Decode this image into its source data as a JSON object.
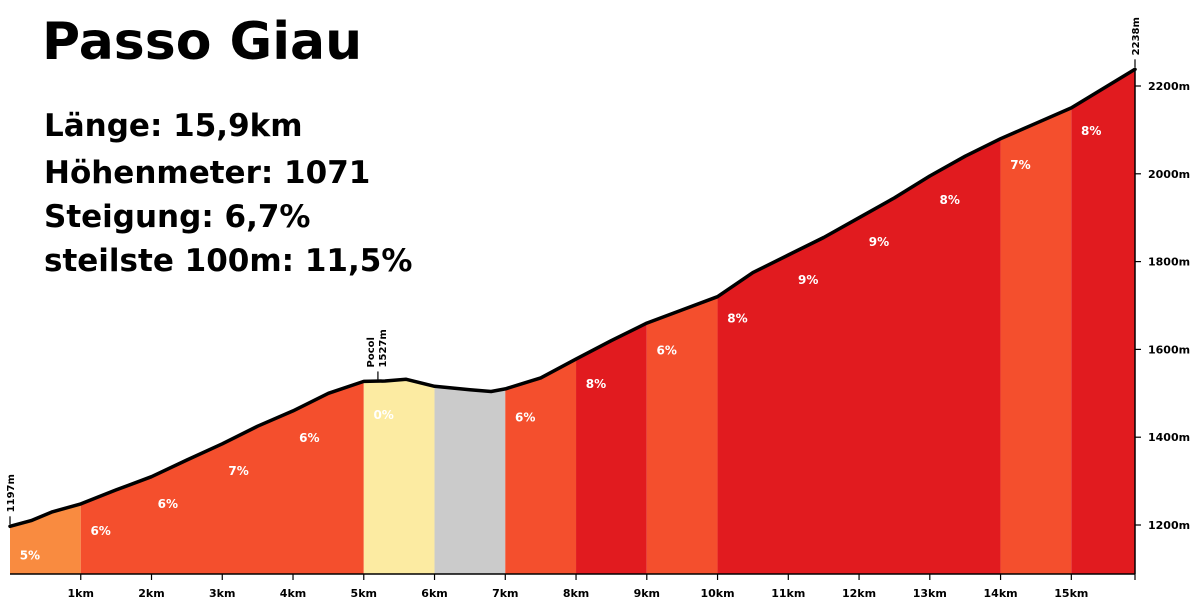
{
  "chart_data": {
    "type": "area",
    "title": "Passo Giau",
    "stats": {
      "laenge": "Länge: 15,9km",
      "hoehenmeter": "Höhenmeter: 1071",
      "steigung": "Steigung: 6,7%",
      "steilste": "steilste 100m: 11,5%"
    },
    "xunit": "km",
    "yunit": "m",
    "xlim": [
      0,
      15.9
    ],
    "ylim": [
      1100,
      2260
    ],
    "x_ticks": [
      1,
      2,
      3,
      4,
      5,
      6,
      7,
      8,
      9,
      10,
      11,
      12,
      13,
      14,
      15
    ],
    "x_tick_labels": [
      "1km",
      "2km",
      "3km",
      "4km",
      "5km",
      "6km",
      "7km",
      "8km",
      "9km",
      "10km",
      "11km",
      "12km",
      "13km",
      "14km",
      "15km"
    ],
    "y_ticks": [
      1200,
      1400,
      1600,
      1800,
      2000,
      2200
    ],
    "y_tick_labels": [
      "1200m",
      "1400m",
      "1600m",
      "1800m",
      "2000m",
      "2200m"
    ],
    "profile": [
      [
        0,
        1197
      ],
      [
        0.3,
        1210
      ],
      [
        0.6,
        1230
      ],
      [
        1,
        1248
      ],
      [
        1.5,
        1280
      ],
      [
        2,
        1310
      ],
      [
        2.5,
        1348
      ],
      [
        3,
        1385
      ],
      [
        3.5,
        1425
      ],
      [
        4,
        1460
      ],
      [
        4.5,
        1500
      ],
      [
        5,
        1527
      ],
      [
        5.3,
        1528
      ],
      [
        5.6,
        1532
      ],
      [
        6,
        1516
      ],
      [
        6.5,
        1508
      ],
      [
        6.8,
        1504
      ],
      [
        7,
        1510
      ],
      [
        7.5,
        1535
      ],
      [
        8,
        1578
      ],
      [
        8.5,
        1620
      ],
      [
        9,
        1660
      ],
      [
        9.5,
        1690
      ],
      [
        10,
        1720
      ],
      [
        10.5,
        1775
      ],
      [
        11,
        1815
      ],
      [
        11.5,
        1855
      ],
      [
        12,
        1900
      ],
      [
        12.5,
        1945
      ],
      [
        13,
        1995
      ],
      [
        13.5,
        2040
      ],
      [
        14,
        2080
      ],
      [
        14.5,
        2115
      ],
      [
        15,
        2150
      ],
      [
        15.9,
        2238
      ]
    ],
    "segments": [
      {
        "from": 0,
        "to": 1,
        "label": "5%",
        "color": "#f98b40",
        "text_color": "#ffffff"
      },
      {
        "from": 1,
        "to": 5,
        "label": "6%",
        "color": "#f44f2d",
        "text_color": "#ffffff"
      },
      {
        "from": 5,
        "to": 6,
        "label": "0%",
        "color": "#fceba2",
        "text_color": "#ffffff"
      },
      {
        "from": 6,
        "to": 7,
        "label": "",
        "color": "#cbcbcb",
        "text_color": "#ffffff"
      },
      {
        "from": 7,
        "to": 8,
        "label": "6%",
        "color": "#f44f2d",
        "text_color": "#ffffff"
      },
      {
        "from": 8,
        "to": 9,
        "label": "8%",
        "color": "#e11b1f",
        "text_color": "#ffffff"
      },
      {
        "from": 9,
        "to": 10,
        "label": "6%",
        "color": "#f44f2d",
        "text_color": "#ffffff"
      },
      {
        "from": 10,
        "to": 14,
        "label": "8%",
        "color": "#e11b1f",
        "text_color": "#ffffff"
      },
      {
        "from": 14,
        "to": 15,
        "label": "7%",
        "color": "#f44f2d",
        "text_color": "#ffffff"
      },
      {
        "from": 15,
        "to": 15.9,
        "label": "8%",
        "color": "#e11b1f",
        "text_color": "#ffffff"
      }
    ],
    "grade_labels": [
      {
        "x": 0.25,
        "label": "5%"
      },
      {
        "x": 1.25,
        "label": "6%"
      },
      {
        "x": 2.2,
        "label": "6%"
      },
      {
        "x": 3.2,
        "label": "7%"
      },
      {
        "x": 4.2,
        "label": "6%"
      },
      {
        "x": 5.25,
        "label": "0%"
      },
      {
        "x": 7.25,
        "label": "6%"
      },
      {
        "x": 8.25,
        "label": "8%"
      },
      {
        "x": 9.25,
        "label": "6%"
      },
      {
        "x": 10.25,
        "label": "8%"
      },
      {
        "x": 11.25,
        "label": "9%"
      },
      {
        "x": 12.25,
        "label": "9%"
      },
      {
        "x": 13.25,
        "label": "8%"
      },
      {
        "x": 14.25,
        "label": "7%"
      },
      {
        "x": 15.25,
        "label": "8%"
      }
    ],
    "annotations": [
      {
        "x": 0,
        "alt": 1197,
        "text": "1197m"
      },
      {
        "x": 5.2,
        "alt": 1527,
        "text": "Pocol",
        "text2": "1527m"
      },
      {
        "x": 15.9,
        "alt": 2238,
        "text": "2238m"
      }
    ],
    "colors": {
      "profile_line": "#000000",
      "axis": "#000000"
    }
  }
}
